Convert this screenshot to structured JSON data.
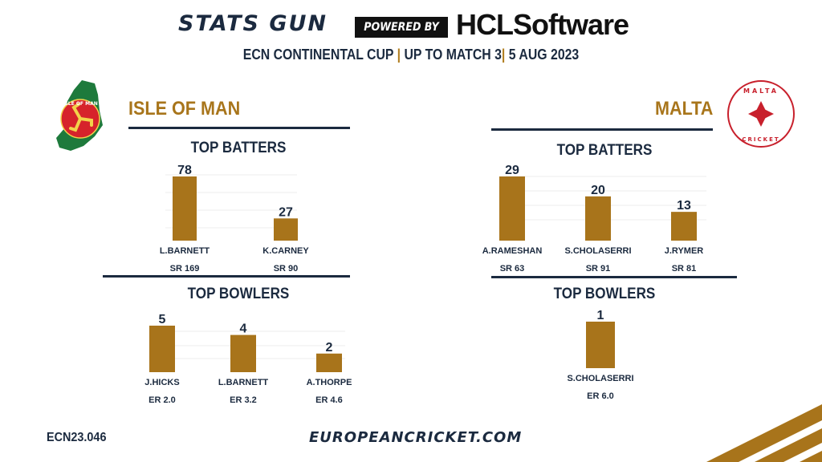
{
  "header": {
    "brand": "STATS GUN",
    "powered_by": "POWERED BY",
    "sponsor": "HCLSoftware",
    "subtitle_parts": [
      "ECN CONTINENTAL CUP",
      "|",
      "UP TO MATCH 3",
      "|",
      "5 AUG 2023"
    ]
  },
  "teams": {
    "left": {
      "name": "ISLE OF MAN",
      "logo_text": "ISLE OF MAN CRICKET"
    },
    "right": {
      "name": "MALTA",
      "logo_text": "MALTA CRICKET"
    }
  },
  "footer": {
    "code": "ECN23.046",
    "site": "EUROPEANCRICKET.COM"
  },
  "colors": {
    "bar": "#a8741b",
    "navy": "#1b2a3f",
    "gold": "#a8751b"
  },
  "chart_data": [
    {
      "type": "bar",
      "title": "TOP BATTERS",
      "team": "ISLE OF MAN",
      "categories": [
        "L.BARNETT",
        "K.CARNEY"
      ],
      "values": [
        78,
        27
      ],
      "sublabels": [
        "SR 169",
        "SR 90"
      ]
    },
    {
      "type": "bar",
      "title": "TOP BOWLERS",
      "team": "ISLE OF MAN",
      "categories": [
        "J.HICKS",
        "L.BARNETT",
        "A.THORPE"
      ],
      "values": [
        5,
        4,
        2
      ],
      "sublabels": [
        "ER 2.0",
        "ER 3.2",
        "ER 4.6"
      ]
    },
    {
      "type": "bar",
      "title": "TOP BATTERS",
      "team": "MALTA",
      "categories": [
        "A.RAMESHAN",
        "S.CHOLASERRI",
        "J.RYMER"
      ],
      "values": [
        29,
        20,
        13
      ],
      "sublabels": [
        "SR 63",
        "SR 91",
        "SR 81"
      ]
    },
    {
      "type": "bar",
      "title": "TOP BOWLERS",
      "team": "MALTA",
      "categories": [
        "S.CHOLASERRI"
      ],
      "values": [
        1
      ],
      "sublabels": [
        "ER 6.0"
      ]
    }
  ]
}
